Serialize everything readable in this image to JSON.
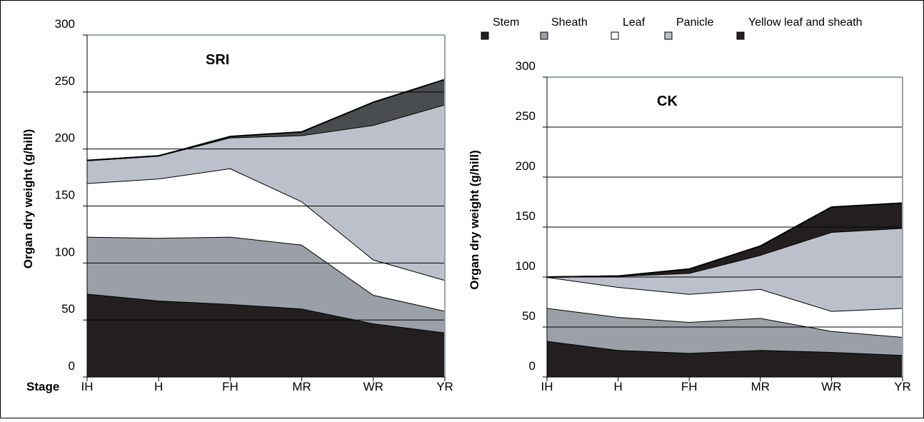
{
  "figure": {
    "stage_label": "Stage",
    "legend": [
      {
        "label": "Stem",
        "color": "#231f20"
      },
      {
        "label": "Sheath",
        "color": "#9ba0a8"
      },
      {
        "label": "Leaf",
        "color": "#ffffff"
      },
      {
        "label": "Panicle",
        "color": "#bcc0ca"
      },
      {
        "label": "Yellow leaf and sheath",
        "color": "#231f20"
      }
    ]
  },
  "chart_data": [
    {
      "type": "area",
      "stacked": true,
      "title": "SRI",
      "xlabel": "",
      "ylabel": "Organ dry weight (g/hill)",
      "categories": [
        "IH",
        "H",
        "FH",
        "MR",
        "WR",
        "YR"
      ],
      "ylim": [
        0,
        300
      ],
      "yticks": [
        0,
        50,
        100,
        150,
        200,
        250,
        300
      ],
      "grid": true,
      "series": [
        {
          "name": "Stem",
          "values": [
            73,
            67,
            64,
            60,
            47,
            39
          ],
          "color": "#231f20"
        },
        {
          "name": "Sheath",
          "values": [
            50,
            55,
            59,
            56,
            25,
            19
          ],
          "color": "#9ba0a8"
        },
        {
          "name": "Leaf",
          "values": [
            47,
            52,
            60,
            38,
            31,
            27
          ],
          "color": "#ffffff"
        },
        {
          "name": "Panicle",
          "values": [
            20,
            20,
            27,
            58,
            118,
            154
          ],
          "color": "#bcc0ca"
        },
        {
          "name": "Yellow leaf and sheath",
          "values": [
            0,
            0,
            1,
            3,
            20,
            22
          ],
          "color": "#4a4d4f"
        }
      ]
    },
    {
      "type": "area",
      "stacked": true,
      "title": "CK",
      "xlabel": "",
      "ylabel": "Organ dry weight (g/hill)",
      "categories": [
        "IH",
        "H",
        "FH",
        "MR",
        "WR",
        "YR"
      ],
      "ylim": [
        0,
        300
      ],
      "yticks": [
        0,
        50,
        100,
        150,
        200,
        250,
        300
      ],
      "grid": true,
      "series": [
        {
          "name": "Stem",
          "values": [
            36,
            27,
            24,
            27,
            25,
            22
          ],
          "color": "#231f20"
        },
        {
          "name": "Sheath",
          "values": [
            33,
            33,
            31,
            32,
            21,
            18
          ],
          "color": "#9ba0a8"
        },
        {
          "name": "Leaf",
          "values": [
            31,
            30,
            28,
            29,
            20,
            29
          ],
          "color": "#ffffff"
        },
        {
          "name": "Panicle",
          "values": [
            0,
            11,
            21,
            34,
            79,
            80
          ],
          "color": "#bcc0ca"
        },
        {
          "name": "Yellow leaf and sheath",
          "values": [
            0,
            0,
            4,
            9,
            25,
            25
          ],
          "color": "#231f20"
        }
      ]
    }
  ]
}
